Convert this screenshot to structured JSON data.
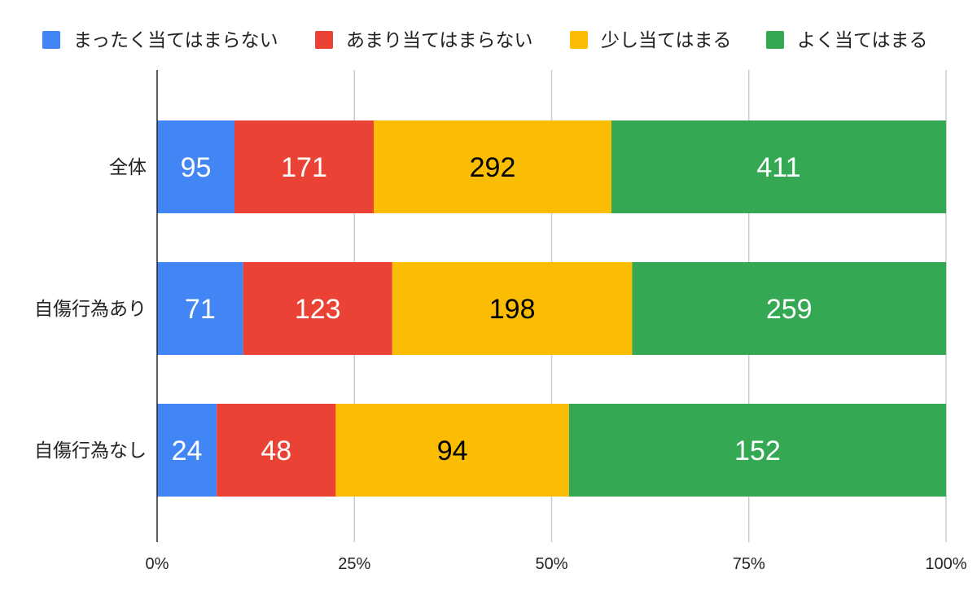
{
  "chart_data": {
    "type": "bar",
    "orientation": "horizontal",
    "stacked": "percent",
    "categories": [
      "全体",
      "自傷行為あり",
      "自傷行為なし"
    ],
    "series": [
      {
        "name": "まったく当てはまらない",
        "color": "#4285F4",
        "label_color": "#ffffff",
        "values": [
          95,
          71,
          24
        ]
      },
      {
        "name": "あまり当てはまらない",
        "color": "#EA4335",
        "label_color": "#ffffff",
        "values": [
          171,
          123,
          48
        ]
      },
      {
        "name": "少し当てはまる",
        "color": "#FBBC04",
        "label_color": "#000000",
        "values": [
          292,
          198,
          94
        ]
      },
      {
        "name": "よく当てはまる",
        "color": "#34A853",
        "label_color": "#ffffff",
        "values": [
          411,
          259,
          152
        ]
      }
    ],
    "x_ticks": [
      "0%",
      "25%",
      "50%",
      "75%",
      "100%"
    ],
    "xlim": [
      0,
      100
    ],
    "grid": "vertical",
    "legend_position": "top"
  }
}
